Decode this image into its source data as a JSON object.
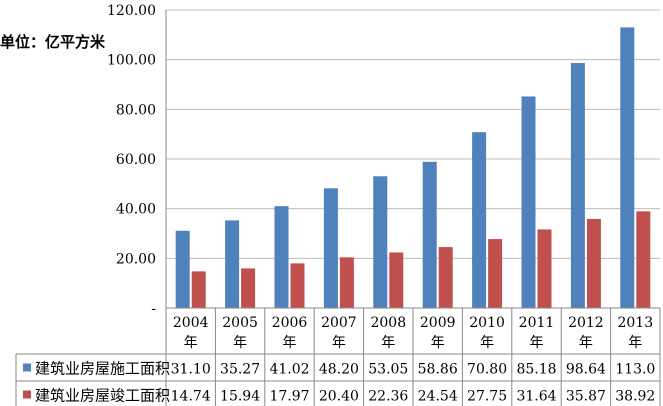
{
  "unit_label": "单位：亿平方米",
  "chart_data": {
    "type": "bar",
    "ylim": [
      0,
      120
    ],
    "y_ticks": [
      "-",
      "20.00",
      "40.00",
      "60.00",
      "80.00",
      "100.00",
      "120.00"
    ],
    "grid": true,
    "categories": [
      "2004",
      "2005",
      "2006",
      "2007",
      "2008",
      "2009",
      "2010",
      "2011",
      "2012",
      "2013"
    ],
    "category_suffix": "年",
    "legend_placement": "bottom (data table)",
    "series": [
      {
        "name": "建筑业房屋施工面积",
        "color": "#4F81BD",
        "values": [
          31.1,
          35.27,
          41.02,
          48.2,
          53.05,
          58.86,
          70.8,
          85.18,
          98.64,
          113.0
        ],
        "labels": [
          "31.10",
          "35.27",
          "41.02",
          "48.20",
          "53.05",
          "58.86",
          "70.80",
          "85.18",
          "98.64",
          "113.0"
        ]
      },
      {
        "name": "建筑业房屋竣工面积",
        "color": "#C0504D",
        "values": [
          14.74,
          15.94,
          17.97,
          20.4,
          22.36,
          24.54,
          27.75,
          31.64,
          35.87,
          38.92
        ],
        "labels": [
          "14.74",
          "15.94",
          "17.97",
          "20.40",
          "22.36",
          "24.54",
          "27.75",
          "31.64",
          "35.87",
          "38.92"
        ]
      }
    ]
  }
}
